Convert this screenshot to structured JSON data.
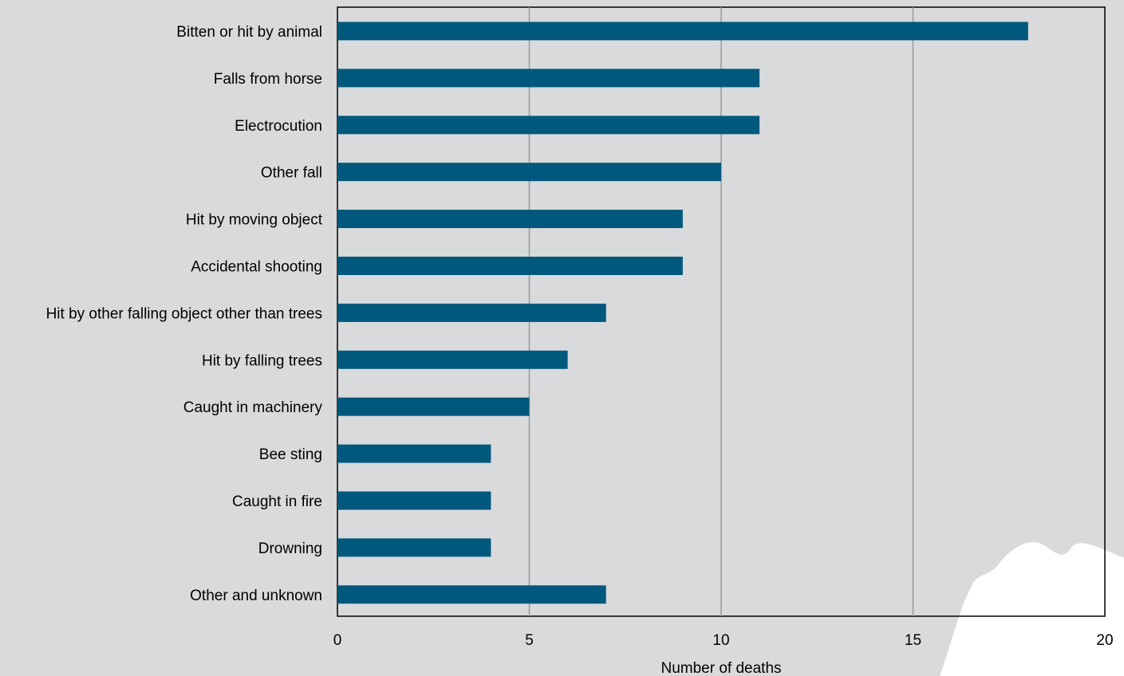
{
  "chart_data": {
    "type": "bar",
    "orientation": "horizontal",
    "categories": [
      "Bitten or hit by animal",
      "Falls from horse",
      "Electrocution",
      "Other fall",
      "Hit by moving object",
      "Accidental shooting",
      "Hit by other falling object other than trees",
      "Hit by falling trees",
      "Caught in machinery",
      "Bee sting",
      "Caught in fire",
      "Drowning",
      "Other and unknown"
    ],
    "values": [
      18,
      11,
      11,
      10,
      9,
      9,
      7,
      6,
      5,
      4,
      4,
      4,
      7
    ],
    "xlabel": "Number of deaths",
    "ylabel": "",
    "xlim": [
      0,
      20
    ],
    "xticks": [
      "0",
      "5",
      "10",
      "15",
      "20"
    ],
    "grid": "vertical",
    "colors": {
      "bar": "#00587c",
      "background": "#d9dadc",
      "gridline": "#999999",
      "axis": "#000000",
      "decoration": "#ffffff"
    }
  }
}
